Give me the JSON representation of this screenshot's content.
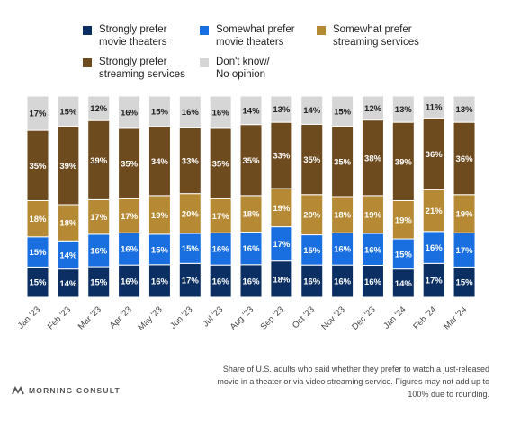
{
  "chart_data": {
    "type": "bar",
    "stacked": true,
    "orientation": "vertical",
    "unit": "%",
    "categories": [
      "Jan '23",
      "Feb '23",
      "Mar '23",
      "Apr '23",
      "May '23",
      "Jun '23",
      "Jul '23",
      "Aug '23",
      "Sep '23",
      "Oct '23",
      "Nov '23",
      "Dec '23",
      "Jan '24",
      "Feb '24",
      "Mar '24"
    ],
    "series": [
      {
        "name": "Strongly prefer movie theaters",
        "color": "#0b2f63",
        "values": [
          15,
          14,
          15,
          16,
          16,
          17,
          16,
          16,
          18,
          16,
          16,
          16,
          14,
          17,
          15
        ]
      },
      {
        "name": "Somewhat prefer movie theaters",
        "color": "#1a6fe0",
        "values": [
          15,
          14,
          16,
          16,
          15,
          15,
          16,
          16,
          17,
          15,
          16,
          16,
          15,
          16,
          17
        ]
      },
      {
        "name": "Somewhat prefer streaming services",
        "color": "#b68a34",
        "values": [
          18,
          18,
          17,
          17,
          19,
          20,
          17,
          18,
          19,
          20,
          18,
          19,
          19,
          21,
          19
        ]
      },
      {
        "name": "Strongly prefer streaming services",
        "color": "#6e4b1f",
        "values": [
          35,
          39,
          39,
          35,
          34,
          33,
          35,
          35,
          33,
          35,
          35,
          38,
          39,
          36,
          36
        ]
      },
      {
        "name": "Don't know/ No opinion",
        "color": "#d6d6d6",
        "values": [
          17,
          15,
          12,
          16,
          15,
          16,
          16,
          14,
          13,
          14,
          15,
          12,
          13,
          11,
          13
        ]
      }
    ],
    "legend_position": "top",
    "grid": false
  },
  "legend": [
    {
      "label": "Strongly prefer\nmovie theaters",
      "color": "#0b2f63"
    },
    {
      "label": "Somewhat prefer\nmovie theaters",
      "color": "#1a6fe0"
    },
    {
      "label": "Somewhat prefer\nstreaming services",
      "color": "#b68a34"
    },
    {
      "label": "Strongly prefer\nstreaming services",
      "color": "#6e4b1f"
    },
    {
      "label": "Don't know/\nNo opinion",
      "color": "#d6d6d6"
    }
  ],
  "footnote": "Share of U.S. adults who said whether they prefer to watch a just-released movie in a theater or via video streaming service. Figures may not add up to 100% due to rounding.",
  "brand": {
    "name": "MORNING CONSULT"
  }
}
